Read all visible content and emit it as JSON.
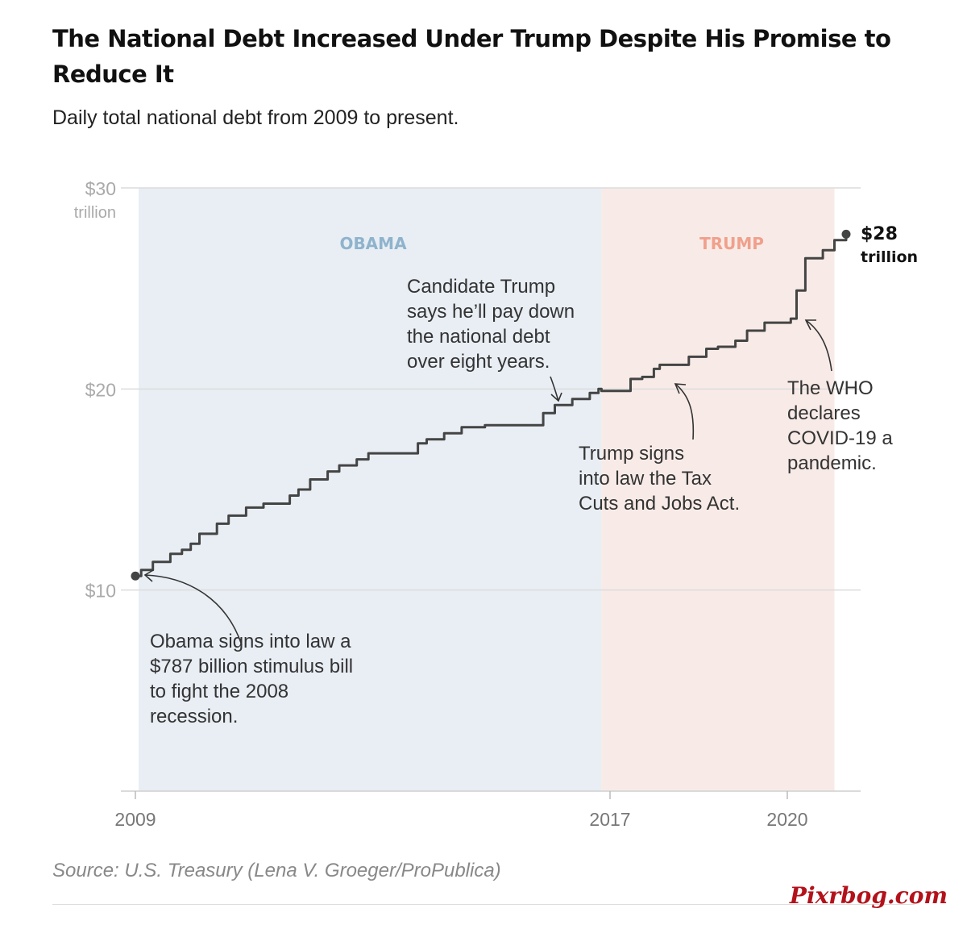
{
  "title": "The National Debt Increased Under Trump Despite His Promise to Reduce It",
  "subtitle": "Daily total national debt from 2009 to present.",
  "source": "Source: U.S. Treasury (Lena V. Groeger/ProPublica)",
  "watermark": "Pixrbog.com",
  "chart_data": {
    "type": "line",
    "title": "",
    "xlabel": "",
    "ylabel": "",
    "x_ticks": [
      "2009",
      "2017",
      "2020"
    ],
    "y_ticks": [
      {
        "value": 30,
        "label": "$30",
        "sublabel": "trillion"
      },
      {
        "value": 20,
        "label": "$20"
      },
      {
        "value": 10,
        "label": "$10"
      }
    ],
    "xlim": [
      2009.0,
      2021.2
    ],
    "ylim": [
      0,
      30
    ],
    "grid": true,
    "series": [
      {
        "color": "#444444",
        "x": [
          2009.0,
          2009.1,
          2009.3,
          2009.6,
          2009.8,
          2009.95,
          2010.1,
          2010.4,
          2010.6,
          2010.9,
          2011.2,
          2011.5,
          2011.65,
          2011.8,
          2012.0,
          2012.3,
          2012.5,
          2012.8,
          2013.0,
          2013.2,
          2013.6,
          2013.85,
          2014.0,
          2014.3,
          2014.6,
          2015.0,
          2015.5,
          2015.9,
          2016.0,
          2016.2,
          2016.5,
          2016.8,
          2016.95,
          2017.0,
          2017.4,
          2017.5,
          2017.7,
          2017.9,
          2018.0,
          2018.5,
          2018.8,
          2019.0,
          2019.1,
          2019.3,
          2019.5,
          2019.8,
          2020.25,
          2020.35,
          2020.5,
          2020.8,
          2021.0,
          2021.2
        ],
        "y": [
          10.7,
          11.0,
          11.4,
          11.8,
          12.0,
          12.3,
          12.8,
          13.3,
          13.7,
          14.1,
          14.3,
          14.3,
          14.7,
          15.0,
          15.5,
          15.9,
          16.2,
          16.5,
          16.8,
          16.8,
          16.8,
          17.3,
          17.5,
          17.8,
          18.1,
          18.2,
          18.2,
          18.2,
          18.8,
          19.2,
          19.5,
          19.8,
          20.0,
          19.9,
          19.9,
          20.5,
          20.6,
          21.0,
          21.2,
          21.6,
          22.0,
          22.1,
          22.1,
          22.4,
          22.9,
          23.3,
          23.5,
          24.9,
          26.5,
          26.9,
          27.4,
          27.7
        ]
      }
    ],
    "regions": [
      {
        "label": "OBAMA",
        "from": 2009.0,
        "to": 2017.0,
        "color": "#e8eef4",
        "label_color": "#8fb3cc"
      },
      {
        "label": "TRUMP",
        "from": 2017.0,
        "to": 2021.0,
        "color": "#f8ebe7",
        "label_color": "#f0a08c"
      }
    ],
    "end_label": {
      "value": "$28",
      "unit": "trillion"
    },
    "annotations": [
      {
        "lines": [
          "Obama signs into law a",
          "$787 billion stimulus bill",
          "to fight the 2008",
          "recession."
        ]
      },
      {
        "lines": [
          "Candidate Trump",
          "says he’ll pay down",
          "the national debt",
          "over eight years."
        ]
      },
      {
        "lines": [
          "Trump signs",
          "into law the Tax",
          "Cuts and Jobs Act."
        ]
      },
      {
        "lines": [
          "The WHO",
          "declares",
          "COVID-19 a",
          "pandemic."
        ]
      }
    ]
  }
}
